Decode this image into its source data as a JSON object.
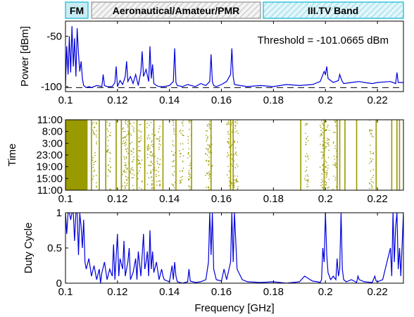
{
  "bands": [
    {
      "label": "FM",
      "fill": "#c9ecf4",
      "stroke": "#37c3db",
      "hatched": false
    },
    {
      "label": "Aeronautical/Amateur/PMR",
      "fill": "#eeeeee",
      "stroke": "#a5a5a5",
      "hatched": true
    },
    {
      "label": "III.TV Band",
      "fill": "#c9ecf4",
      "stroke": "#37c3db",
      "hatched": true
    }
  ],
  "colors": {
    "line": "#0000dd",
    "scatter": "#999900",
    "axis": "#000000"
  },
  "chart_data": [
    {
      "type": "line",
      "ylabel": "Power [dBm]",
      "xlim": [
        0.1,
        0.23
      ],
      "ylim": [
        -105,
        -35
      ],
      "x_ticks": [
        "0.1",
        "0.12",
        "0.14",
        "0.16",
        "0.18",
        "0.2",
        "0.22"
      ],
      "y_ticks": [
        "-50",
        "-100"
      ],
      "threshold_text": "Threshold = -101.0665 dBm",
      "threshold_value": -101.0665,
      "series": [
        {
          "x": [
            0.1,
            0.1005,
            0.101,
            0.1015,
            0.102,
            0.1025,
            0.103,
            0.1035,
            0.104,
            0.1045,
            0.105,
            0.1055,
            0.106,
            0.1065,
            0.107,
            0.108,
            0.109,
            0.11,
            0.112,
            0.114,
            0.1145,
            0.115,
            0.116,
            0.118,
            0.119,
            0.1195,
            0.12,
            0.121,
            0.122,
            0.123,
            0.1235,
            0.124,
            0.125,
            0.126,
            0.127,
            0.128,
            0.129,
            0.1295,
            0.13,
            0.131,
            0.132,
            0.1325,
            0.133,
            0.1335,
            0.134,
            0.135,
            0.136,
            0.138,
            0.14,
            0.1415,
            0.142,
            0.1425,
            0.143,
            0.145,
            0.147,
            0.15,
            0.152,
            0.154,
            0.1555,
            0.156,
            0.1565,
            0.157,
            0.158,
            0.16,
            0.162,
            0.1635,
            0.164,
            0.1645,
            0.165,
            0.167,
            0.17,
            0.175,
            0.18,
            0.185,
            0.19,
            0.195,
            0.198,
            0.1995,
            0.2,
            0.2005,
            0.201,
            0.203,
            0.205,
            0.2055,
            0.206,
            0.2065,
            0.207,
            0.21,
            0.213,
            0.215,
            0.218,
            0.22,
            0.225,
            0.227,
            0.2275,
            0.228,
            0.23
          ],
          "y": [
            -100,
            -60,
            -88,
            -50,
            -86,
            -40,
            -80,
            -52,
            -90,
            -42,
            -68,
            -85,
            -75,
            -92,
            -99,
            -101,
            -100,
            -101,
            -99,
            -100,
            -88,
            -99,
            -100,
            -100,
            -96,
            -80,
            -100,
            -94,
            -98,
            -90,
            -75,
            -95,
            -90,
            -97,
            -88,
            -99,
            -85,
            -65,
            -90,
            -83,
            -95,
            -60,
            -92,
            -78,
            -97,
            -99,
            -100,
            -100,
            -99,
            -95,
            -62,
            -96,
            -99,
            -100,
            -98,
            -100,
            -97,
            -99,
            -95,
            -68,
            -95,
            -99,
            -100,
            -98,
            -95,
            -88,
            -62,
            -90,
            -98,
            -99,
            -100,
            -99,
            -100,
            -98,
            -99,
            -98,
            -95,
            -85,
            -88,
            -80,
            -92,
            -96,
            -94,
            -88,
            -92,
            -95,
            -97,
            -96,
            -95,
            -96,
            -97,
            -96,
            -95,
            -97,
            -86,
            -96,
            -96
          ]
        }
      ]
    },
    {
      "type": "scatter",
      "ylabel": "Time",
      "xlim": [
        0.1,
        0.23
      ],
      "x_ticks": [
        "0.1",
        "0.12",
        "0.14",
        "0.16",
        "0.18",
        "0.2",
        "0.22"
      ],
      "y_ticks": [
        "11:00",
        "8:00",
        "3:00",
        "23:00",
        "19:00",
        "15:00",
        "11:00"
      ],
      "solid_ranges": [
        [
          0.1,
          0.1085
        ]
      ],
      "vertical_lines": [
        0.11,
        0.113,
        0.1155,
        0.1195,
        0.1215,
        0.1245,
        0.1275,
        0.1305,
        0.134,
        0.1375,
        0.1425,
        0.1485,
        0.156,
        0.1635,
        0.1645,
        0.1905,
        0.1995,
        0.2045,
        0.2055,
        0.2075,
        0.212,
        0.2195,
        0.2255,
        0.2275,
        0.2285
      ],
      "scatter_columns": [
        0.111,
        0.1165,
        0.1225,
        0.1235,
        0.1255,
        0.1285,
        0.132,
        0.1335,
        0.1355,
        0.1415,
        0.1445,
        0.1475,
        0.1545,
        0.1555,
        0.1625,
        0.164,
        0.1655,
        0.1925,
        0.1985,
        0.1995,
        0.2005,
        0.2035,
        0.2175
      ]
    },
    {
      "type": "line",
      "ylabel": "Duty Cycle",
      "xlabel": "Frequency [GHz]",
      "xlim": [
        0.1,
        0.23
      ],
      "ylim": [
        0,
        1
      ],
      "x_ticks": [
        "0.1",
        "0.12",
        "0.14",
        "0.16",
        "0.18",
        "0.2",
        "0.22"
      ],
      "y_ticks": [
        "1",
        "0.5",
        "0"
      ],
      "series": [
        {
          "x": [
            0.1,
            0.1005,
            0.101,
            0.1015,
            0.102,
            0.1025,
            0.103,
            0.1035,
            0.104,
            0.1045,
            0.105,
            0.1055,
            0.106,
            0.1065,
            0.107,
            0.1075,
            0.108,
            0.109,
            0.11,
            0.111,
            0.112,
            0.113,
            0.1135,
            0.114,
            0.115,
            0.116,
            0.117,
            0.118,
            0.1185,
            0.119,
            0.12,
            0.1205,
            0.121,
            0.122,
            0.1225,
            0.123,
            0.124,
            0.1245,
            0.125,
            0.126,
            0.127,
            0.1275,
            0.128,
            0.129,
            0.13,
            0.1305,
            0.131,
            0.1315,
            0.132,
            0.1325,
            0.133,
            0.1335,
            0.134,
            0.135,
            0.136,
            0.137,
            0.1375,
            0.138,
            0.14,
            0.141,
            0.1415,
            0.142,
            0.1425,
            0.143,
            0.145,
            0.147,
            0.1475,
            0.148,
            0.15,
            0.152,
            0.154,
            0.155,
            0.1555,
            0.156,
            0.1565,
            0.157,
            0.158,
            0.16,
            0.161,
            0.162,
            0.1635,
            0.164,
            0.1645,
            0.165,
            0.166,
            0.168,
            0.17,
            0.175,
            0.18,
            0.185,
            0.19,
            0.192,
            0.195,
            0.197,
            0.198,
            0.1985,
            0.199,
            0.1995,
            0.2,
            0.2005,
            0.201,
            0.202,
            0.203,
            0.204,
            0.2045,
            0.205,
            0.2055,
            0.206,
            0.2065,
            0.207,
            0.208,
            0.21,
            0.212,
            0.2125,
            0.213,
            0.215,
            0.218,
            0.219,
            0.2195,
            0.22,
            0.222,
            0.225,
            0.2255,
            0.226,
            0.2265,
            0.227,
            0.2275,
            0.228,
            0.2285,
            0.229,
            0.23
          ],
          "y": [
            1,
            0.7,
            1,
            1,
            0.9,
            1,
            1,
            0.6,
            1,
            1,
            0.4,
            1,
            0.8,
            0.5,
            0.9,
            0.3,
            0.2,
            0.35,
            0.1,
            0.25,
            0.05,
            0.2,
            0,
            0.15,
            0.3,
            0.05,
            0.2,
            0.1,
            0.55,
            0.05,
            0.7,
            0.1,
            0.35,
            0.2,
            0.6,
            0.1,
            0.3,
            0.5,
            0.05,
            0.15,
            0.35,
            0.05,
            0.45,
            0.1,
            0.7,
            0.2,
            0.3,
            0.45,
            0.1,
            0.75,
            0.2,
            0.45,
            0.15,
            0.3,
            0.05,
            0.2,
            0.1,
            0.05,
            0.02,
            0.25,
            0.05,
            0.3,
            0.1,
            0.02,
            0,
            0.02,
            0.2,
            0.03,
            0.01,
            0.02,
            0.05,
            0.3,
            1,
            0.4,
            1,
            0.2,
            0.05,
            0.03,
            0.2,
            0.05,
            0.3,
            1,
            0.3,
            1,
            0.2,
            0.05,
            0.02,
            0.01,
            0.02,
            0,
            0.02,
            0.1,
            0.03,
            0.02,
            0.01,
            0.05,
            0.5,
            0.3,
            1,
            0.4,
            0.15,
            0.05,
            0.1,
            0.05,
            0.35,
            0.1,
            0.2,
            1,
            0.2,
            0.05,
            0.02,
            0.05,
            0.01,
            0.1,
            0.05,
            0.02,
            0.01,
            0.1,
            0.03,
            0.02,
            0.05,
            0.5,
            0.1,
            1,
            0.3,
            0.8,
            1,
            0.2,
            0.5,
            0.1,
            1
          ]
        }
      ]
    }
  ]
}
